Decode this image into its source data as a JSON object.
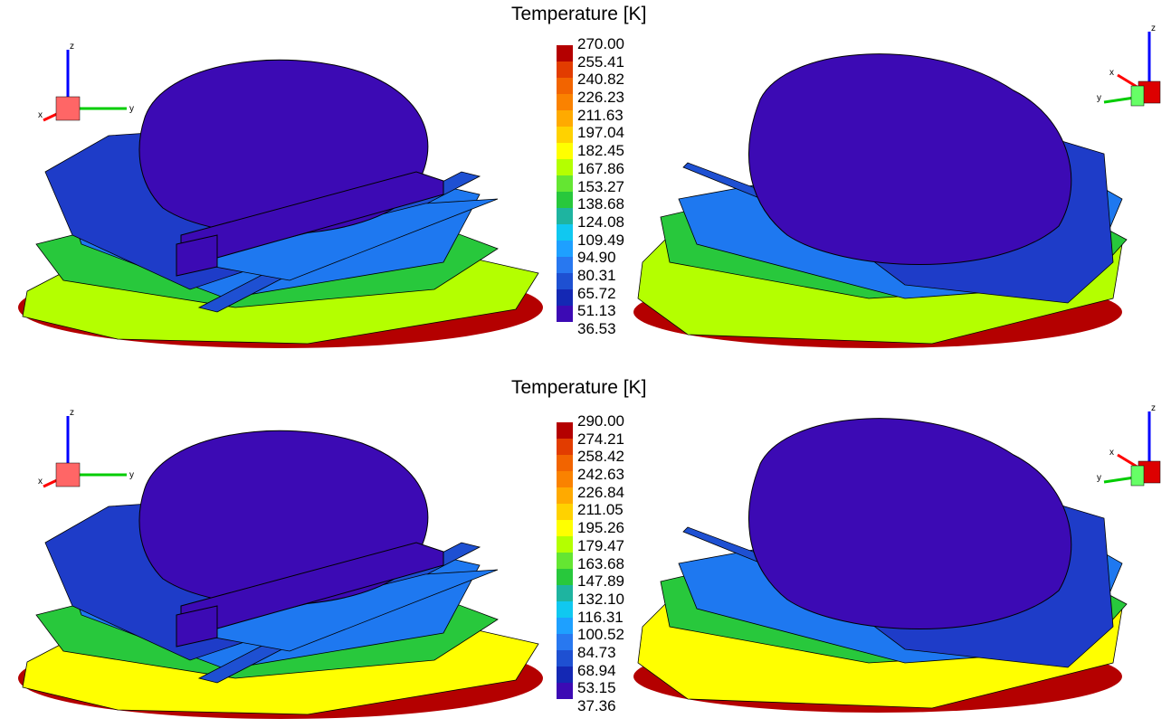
{
  "panels": [
    {
      "title": "Temperature [K]",
      "scale_values": [
        "270.00",
        "255.41",
        "240.82",
        "226.23",
        "211.63",
        "197.04",
        "182.45",
        "167.86",
        "153.27",
        "138.68",
        "124.08",
        "109.49",
        "94.90",
        "80.31",
        "65.72",
        "51.13",
        "36.53"
      ]
    },
    {
      "title": "Temperature [K]",
      "scale_values": [
        "290.00",
        "274.21",
        "258.42",
        "242.63",
        "226.84",
        "211.05",
        "195.26",
        "179.47",
        "163.68",
        "147.89",
        "132.10",
        "116.31",
        "100.52",
        "84.73",
        "68.94",
        "53.15",
        "37.36"
      ]
    }
  ],
  "colorbar_colors": [
    "#b40000",
    "#e23c00",
    "#f26400",
    "#fa8200",
    "#ffaa00",
    "#ffd200",
    "#ffff00",
    "#b4ff00",
    "#64e632",
    "#28c83c",
    "#1eb4a0",
    "#10c8f0",
    "#1ea0ff",
    "#2878f0",
    "#1e50d2",
    "#1428b4",
    "#3c0ab4"
  ],
  "axis_labels": {
    "x": "x",
    "y": "y",
    "z": "z"
  },
  "surface_colors": {
    "body": "#3c0ab4",
    "shield_dark": "#1e3cc8",
    "shield_light": "#1e78f0",
    "panel_mid": "#28c83c",
    "base_top": "#b4ff00",
    "base_bottom": "#ffff00",
    "base_rim": "#b40000"
  }
}
